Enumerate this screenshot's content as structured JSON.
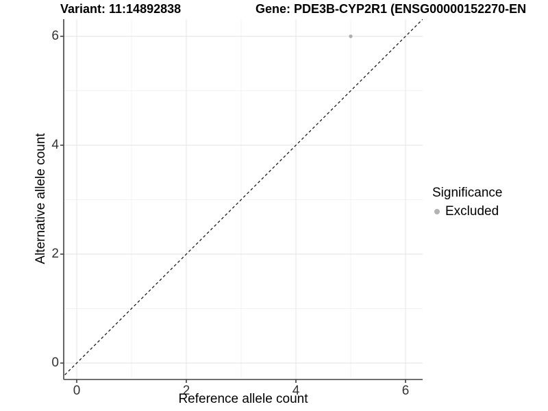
{
  "figure": {
    "title_left": "Variant: 11:14892838",
    "title_right": "Gene: PDE3B-CYP2R1 (ENSG00000152270-EN"
  },
  "chart_data": {
    "type": "scatter",
    "title": "Variant: 11:14892838 | Gene: PDE3B-CYP2R1 (ENSG00000152270-EN…)",
    "xlabel": "Reference allele count",
    "ylabel": "Alternative allele count",
    "xlim": [
      -0.25,
      6.3
    ],
    "ylim": [
      -0.3,
      6.3
    ],
    "x_major_ticks": [
      0,
      2,
      4,
      6
    ],
    "y_major_ticks": [
      0,
      2,
      4,
      6
    ],
    "x_minor_gridlines": [
      1,
      3,
      5
    ],
    "y_minor_gridlines": [
      1,
      3,
      5
    ],
    "x_tick_labels": [
      "0",
      "2",
      "4",
      "6"
    ],
    "y_tick_labels": [
      "0",
      "2",
      "4",
      "6"
    ],
    "grid": true,
    "series": [
      {
        "name": "Excluded",
        "color": "#adadad",
        "points": [
          {
            "x": 5,
            "y": 6
          }
        ]
      }
    ],
    "reference_line": {
      "type": "identity",
      "style": "dashed",
      "color": "#1a1a1a",
      "from": -0.35,
      "to": 6.7
    },
    "legend": {
      "title": "Significance",
      "position": "right",
      "items": [
        {
          "label": "Excluded",
          "color": "#b3b3b3"
        }
      ]
    }
  },
  "colors": {
    "background": "#ffffff",
    "axis_line": "#404040",
    "tick_text": "#333333",
    "grid_major": "#e8e8e8",
    "grid_minor": "#f3f3f3",
    "point": "#adadad",
    "legend_dot": "#b3b3b3",
    "dashed_line": "#1a1a1a"
  }
}
